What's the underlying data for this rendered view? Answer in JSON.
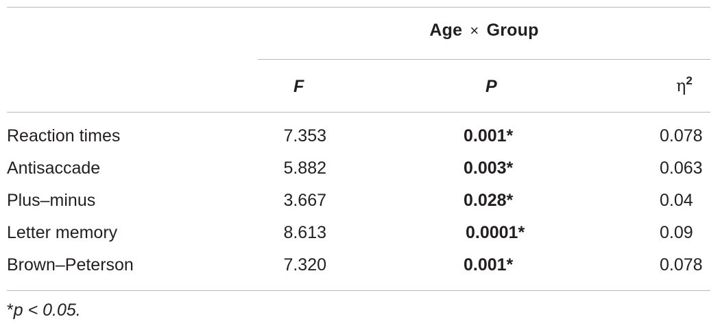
{
  "table": {
    "group_title": "Age",
    "group_times": "×",
    "group_title2": "Group",
    "headers": {
      "F": "F",
      "P": "P",
      "eta": "η",
      "eta_sup": "2"
    },
    "rows": [
      {
        "label": "Reaction times",
        "F": "7.353",
        "P": "0.001*",
        "eta": "0.078"
      },
      {
        "label": "Antisaccade",
        "F": "5.882",
        "P": "0.003*",
        "eta": "0.063"
      },
      {
        "label": "Plus–minus",
        "F": "3.667",
        "P": "0.028*",
        "eta": "0.04"
      },
      {
        "label": "Letter memory",
        "F": "8.613",
        "P": "0.0001*",
        "eta": "0.09"
      },
      {
        "label": "Brown–Peterson",
        "F": "7.320",
        "P": "0.001*",
        "eta": "0.078"
      }
    ],
    "footnote": {
      "marker": "*",
      "text": "p < 0.05."
    }
  }
}
